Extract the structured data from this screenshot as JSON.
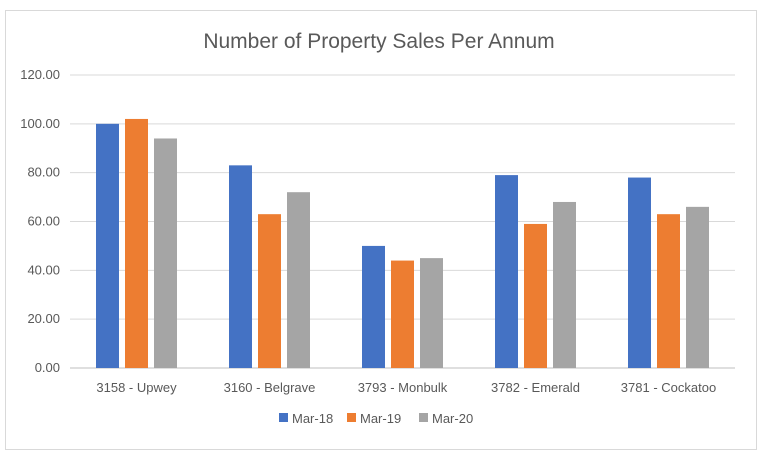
{
  "chart_data": {
    "type": "bar",
    "title": "Number of Property Sales Per Annum",
    "xlabel": "",
    "ylabel": "",
    "ylim": [
      0,
      120
    ],
    "yticks": [
      "0.00",
      "20.00",
      "40.00",
      "60.00",
      "80.00",
      "100.00",
      "120.00"
    ],
    "categories": [
      "3158 - Upwey",
      "3160 - Belgrave",
      "3793 - Monbulk",
      "3782 - Emerald",
      "3781 - Cockatoo"
    ],
    "series": [
      {
        "name": "Mar-18",
        "color": "#4472c4",
        "values": [
          100,
          83,
          50,
          79,
          78
        ]
      },
      {
        "name": "Mar-19",
        "color": "#ed7d31",
        "values": [
          102,
          63,
          44,
          59,
          63
        ]
      },
      {
        "name": "Mar-20",
        "color": "#a5a5a5",
        "values": [
          94,
          72,
          45,
          68,
          66
        ]
      }
    ],
    "grid": true,
    "legend": "bottom"
  }
}
